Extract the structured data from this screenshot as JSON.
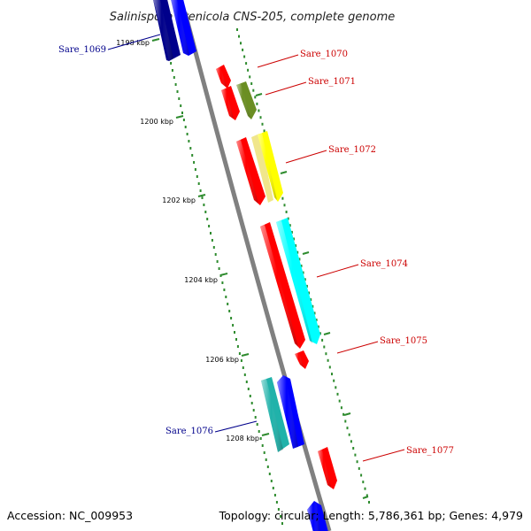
{
  "title": "Salinispora arenicola CNS-205, complete genome",
  "footer": {
    "accession": "Accession: NC_009953",
    "summary": "Topology: circular; Length: 5,786,361 bp; Genes: 4,979"
  },
  "ticks": [
    "1198 kbp",
    "1200 kbp",
    "1202 kbp",
    "1204 kbp",
    "1206 kbp",
    "1208 kbp"
  ],
  "gene_labels": [
    {
      "text": "Sare_1069",
      "color": "#00008b"
    },
    {
      "text": "Sare_1070",
      "color": "#cc0000"
    },
    {
      "text": "Sare_1071",
      "color": "#cc0000"
    },
    {
      "text": "Sare_1072",
      "color": "#cc0000"
    },
    {
      "text": "Sare_1074",
      "color": "#cc0000"
    },
    {
      "text": "Sare_1075",
      "color": "#cc0000"
    },
    {
      "text": "Sare_1076",
      "color": "#00008b"
    },
    {
      "text": "Sare_1077",
      "color": "#cc0000"
    }
  ],
  "colors": {
    "backbone": "#808080",
    "tick": "#2e8b2e",
    "red": "#ff0000",
    "blue": "#0000ff",
    "navy": "#00008b",
    "olive": "#6b8e23",
    "yellow": "#ffff00",
    "khaki": "#f0e68c",
    "cyan": "#00ffff",
    "teal": "#20b2aa"
  }
}
